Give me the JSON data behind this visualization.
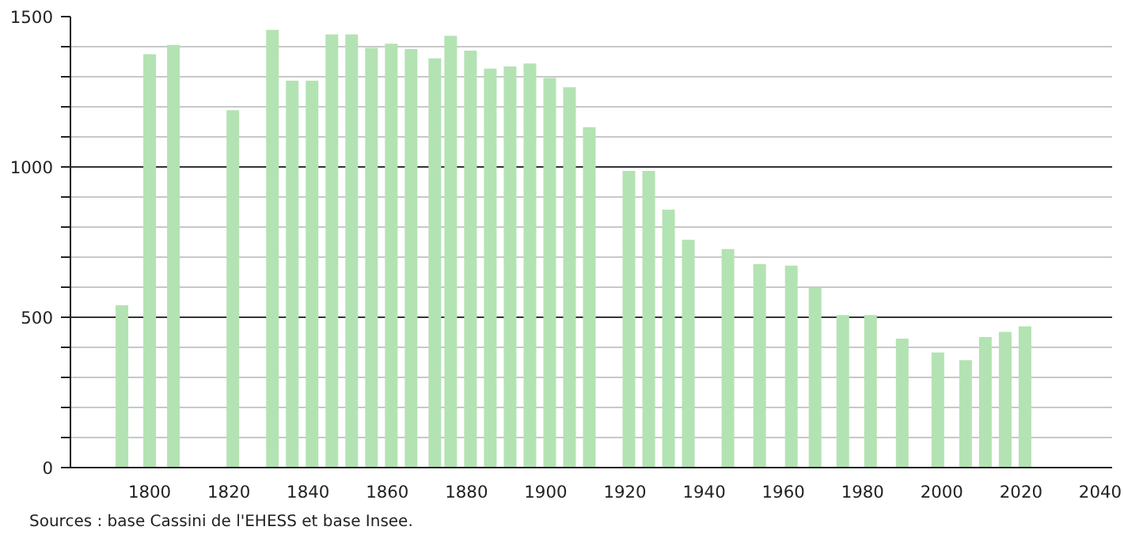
{
  "chart_data": {
    "type": "bar",
    "x": [
      1793,
      1800,
      1806,
      1821,
      1831,
      1836,
      1841,
      1846,
      1851,
      1856,
      1861,
      1866,
      1872,
      1876,
      1881,
      1886,
      1891,
      1896,
      1901,
      1906,
      1911,
      1921,
      1926,
      1931,
      1936,
      1946,
      1954,
      1962,
      1968,
      1975,
      1982,
      1990,
      1999,
      2006,
      2011,
      2016,
      2021
    ],
    "values": [
      540,
      1375,
      1406,
      1189,
      1456,
      1287,
      1287,
      1441,
      1441,
      1396,
      1410,
      1392,
      1361,
      1436,
      1387,
      1327,
      1334,
      1344,
      1296,
      1265,
      1132,
      987,
      987,
      858,
      758,
      727,
      677,
      672,
      598,
      507,
      507,
      429,
      383,
      357,
      434,
      451,
      470
    ],
    "color": "#b3e3b3",
    "xlim": [
      1780,
      2043
    ],
    "xticks": [
      1800,
      1820,
      1840,
      1860,
      1880,
      1900,
      1920,
      1940,
      1960,
      1980,
      2000,
      2020,
      2040
    ],
    "ylim": [
      0,
      1500
    ],
    "yticks": [
      0,
      {
        "value": 100,
        "label": null
      },
      {
        "value": 200,
        "label": null
      },
      {
        "value": 300,
        "label": null
      },
      {
        "value": 400,
        "label": null
      },
      500,
      {
        "value": 600,
        "label": null
      },
      {
        "value": 700,
        "label": null
      },
      {
        "value": 800,
        "label": null
      },
      {
        "value": 900,
        "label": null
      },
      1000,
      {
        "value": 1100,
        "label": null
      },
      {
        "value": 1200,
        "label": null
      },
      {
        "value": 1300,
        "label": null
      },
      {
        "value": 1400,
        "label": null
      },
      1500
    ],
    "grid": "y",
    "annotations": [
      "Sources : base Cassini de l'EHESS et base Insee."
    ]
  }
}
